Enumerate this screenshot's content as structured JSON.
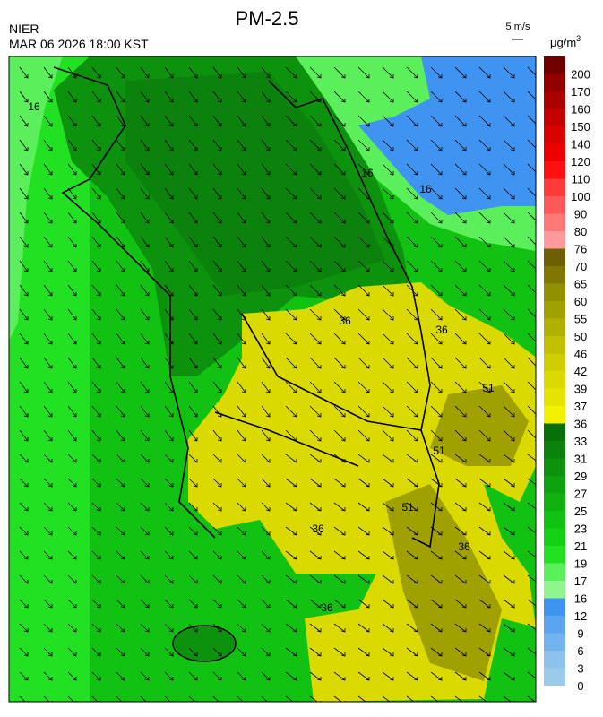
{
  "header": {
    "title": "PM-2.5",
    "agency": "NIER",
    "datetime": "MAR 06 2026 18:00 KST"
  },
  "wind_scale": {
    "label": "5 m/s"
  },
  "colorbar": {
    "unit": "μg/m",
    "unit_exp": "3",
    "levels": [
      {
        "value": 0,
        "color": "#9ccbe9"
      },
      {
        "value": 3,
        "color": "#8cc2ec"
      },
      {
        "value": 6,
        "color": "#74b4ee"
      },
      {
        "value": 9,
        "color": "#5ca4f0"
      },
      {
        "value": 12,
        "color": "#3f94f2"
      },
      {
        "value": 16,
        "color": "#8ff58f"
      },
      {
        "value": 17,
        "color": "#5cef5c"
      },
      {
        "value": 19,
        "color": "#22e022"
      },
      {
        "value": 21,
        "color": "#14d014"
      },
      {
        "value": 23,
        "color": "#12c212"
      },
      {
        "value": 25,
        "color": "#10b210"
      },
      {
        "value": 27,
        "color": "#0fa20f"
      },
      {
        "value": 29,
        "color": "#0d920d"
      },
      {
        "value": 31,
        "color": "#0b820b"
      },
      {
        "value": 33,
        "color": "#087008"
      },
      {
        "value": 36,
        "color": "#f2f200"
      },
      {
        "value": 37,
        "color": "#e4e400"
      },
      {
        "value": 39,
        "color": "#dada00"
      },
      {
        "value": 42,
        "color": "#cece00"
      },
      {
        "value": 46,
        "color": "#c0c000"
      },
      {
        "value": 50,
        "color": "#b0b000"
      },
      {
        "value": 55,
        "color": "#a0a000"
      },
      {
        "value": 60,
        "color": "#909000"
      },
      {
        "value": 65,
        "color": "#807600"
      },
      {
        "value": 70,
        "color": "#6c6000"
      },
      {
        "value": 76,
        "color": "#ff9a9a"
      },
      {
        "value": 80,
        "color": "#ff7878"
      },
      {
        "value": 90,
        "color": "#ff5858"
      },
      {
        "value": 100,
        "color": "#ff3a3a"
      },
      {
        "value": 110,
        "color": "#ff1010"
      },
      {
        "value": 120,
        "color": "#ec0000"
      },
      {
        "value": 140,
        "color": "#d80000"
      },
      {
        "value": 150,
        "color": "#c40000"
      },
      {
        "value": 160,
        "color": "#ac0000"
      },
      {
        "value": 170,
        "color": "#940000"
      },
      {
        "value": 200,
        "color": "#700000"
      }
    ]
  },
  "contour_labels": [
    "16",
    "16",
    "16",
    "36",
    "36",
    "51",
    "51",
    "51",
    "36",
    "36",
    "36"
  ]
}
